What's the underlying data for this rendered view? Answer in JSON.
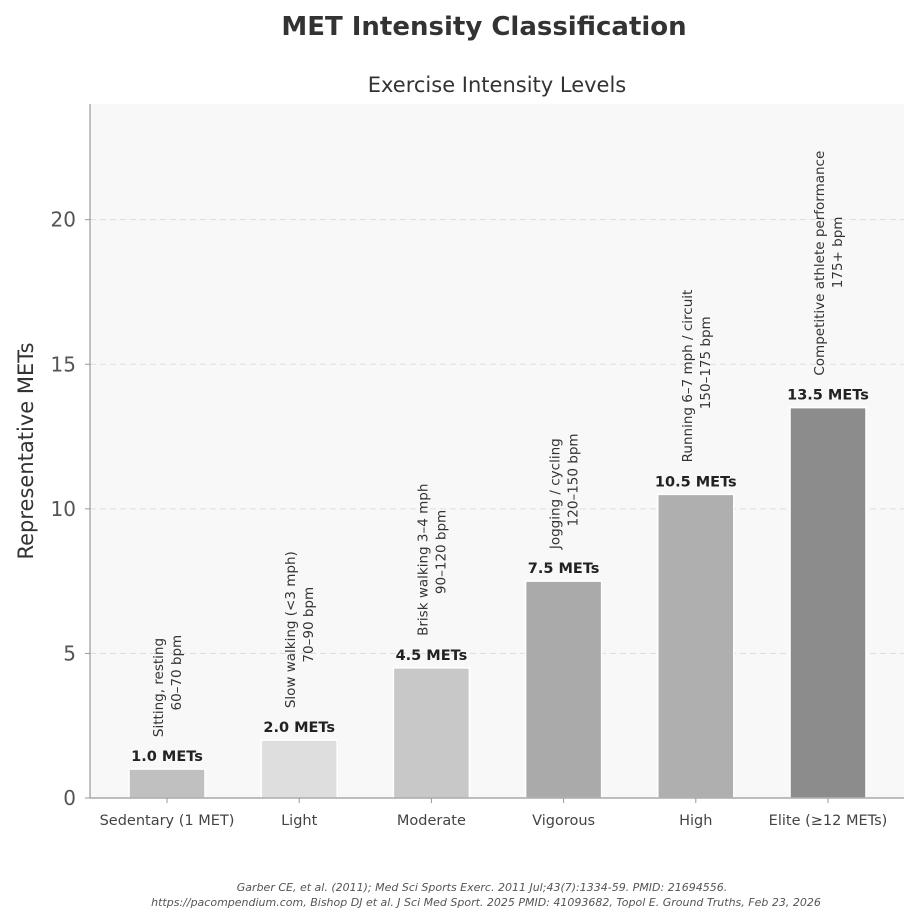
{
  "figure": {
    "suptitle": "MET Intensity Classification",
    "source_line1": "Garber CE, et al. (2011);  Med Sci Sports Exerc. 2011 Jul;43(7):1334-59. PMID: 21694556.",
    "source_line2": "https://pacompendium.com, Bishop DJ et al. J Sci Med Sport. 2025 PMID: 41093682, Topol E. Ground Truths, Feb 23, 2026"
  },
  "chart_data": {
    "type": "bar",
    "title": "Exercise Intensity Levels",
    "xlabel": "",
    "ylabel": "Representative METs",
    "ylim": [
      0,
      24
    ],
    "yticks": [
      0,
      5,
      10,
      15,
      20
    ],
    "grid": "horizontal dashed",
    "categories": [
      "Sedentary (1 MET)",
      "Light",
      "Moderate",
      "Vigorous",
      "High",
      "Elite (≥12 METs)"
    ],
    "values": [
      1.0,
      2.0,
      4.5,
      7.5,
      10.5,
      13.5
    ],
    "value_labels": [
      "1.0 METs",
      "2.0 METs",
      "4.5 METs",
      "7.5 METs",
      "10.5 METs",
      "13.5 METs"
    ],
    "annotations": [
      [
        "Sitting, resting",
        "60–70 bpm"
      ],
      [
        "Slow walking (<3 mph)",
        "70–90 bpm"
      ],
      [
        "Brisk walking 3–4 mph",
        "90–120 bpm"
      ],
      [
        "Jogging / cycling",
        "120–150 bpm"
      ],
      [
        "Running 6–7 mph / circuit",
        "150–175 bpm"
      ],
      [
        "Competitive athlete performance",
        "175+ bpm"
      ]
    ],
    "colors": [
      "#c0c0c0",
      "#dedede",
      "#c8c8c8",
      "#aaaaaa",
      "#afafaf",
      "#8c8c8c"
    ]
  }
}
